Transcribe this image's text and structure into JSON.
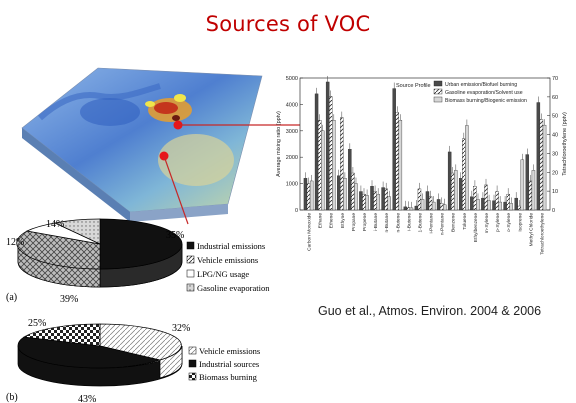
{
  "slide": {
    "title": "Sources of VOC",
    "citation": "Guo et al., Atmos. Environ. 2004 & 2006"
  },
  "colors": {
    "title": "#c00000",
    "marker": "#e8161a",
    "connector": "#c62828"
  },
  "pie_a": {
    "panel_label": "(a)",
    "slices": [
      {
        "label": "Industrial emissions",
        "percent": 35,
        "fill": "black"
      },
      {
        "label": "Vehicle emissions",
        "percent": 39,
        "fill": "cross-hatch"
      },
      {
        "label": "LPG/NG usage",
        "percent": 12,
        "fill": "white"
      },
      {
        "label": "Gasoline evaporation",
        "percent": 14,
        "fill": "dotted-grey"
      }
    ],
    "legend": [
      "Industrial emissions",
      "Vehicle emissions",
      "LPG/NG usage",
      "Gasoline evaporation"
    ]
  },
  "pie_b": {
    "panel_label": "(b)",
    "slices": [
      {
        "label": "Vehicle emissions",
        "percent": 32,
        "fill": "white-hatch"
      },
      {
        "label": "Industrial sources",
        "percent": 43,
        "fill": "black"
      },
      {
        "label": "Biomass burning",
        "percent": 25,
        "fill": "checker"
      }
    ],
    "legend": [
      "Vehicle emissions",
      "Industrial sources",
      "Biomass burning"
    ]
  },
  "chart_data": {
    "type": "bar",
    "ylabel": "Average mixing ratio (pptv)",
    "ylabel_right": "Tetrachloroethylene (pptv)",
    "ylim": [
      0,
      5000
    ],
    "ylim_right": [
      0,
      70
    ],
    "yticks": [
      "0",
      "1000",
      "2000",
      "3000",
      "4000",
      "5000"
    ],
    "yticks_right": [
      "0",
      "10",
      "20",
      "30",
      "40",
      "50",
      "60",
      "70"
    ],
    "legend_title": "Source Profile",
    "legend_position": "top-right",
    "categories": [
      "Carbon Monoxide",
      "Ethane",
      "Ethene",
      "Ethyne",
      "Propane",
      "Propene",
      "i-Butane",
      "n-Butane",
      "n-Butene",
      "i-Butene",
      "1-Butene",
      "i-Pentane",
      "n-Pentane",
      "Benzene",
      "Toluene",
      "Ethylbenzene",
      "m-Xylene",
      "p-Xylene",
      "o-Xylene",
      "Isoprene",
      "Methyl Chloride",
      "Tetrachloroethylene"
    ],
    "series": [
      {
        "name": "Urban emission/Biofuel burning",
        "values": [
          1200,
          4400,
          4850,
          1300,
          2300,
          700,
          900,
          850,
          4600,
          120,
          150,
          700,
          400,
          2200,
          1200,
          500,
          450,
          350,
          300,
          450,
          2100,
          57
        ]
      },
      {
        "name": "Gasoline evaporation/Solvent use",
        "values": [
          1000,
          3400,
          4300,
          3500,
          1400,
          600,
          700,
          800,
          3700,
          100,
          800,
          500,
          250,
          1400,
          2700,
          900,
          950,
          700,
          600,
          150,
          1100,
          48
        ]
      },
      {
        "name": "Biomass burning/Biogenic emission",
        "values": [
          1100,
          3000,
          3400,
          1200,
          1000,
          550,
          600,
          500,
          3400,
          80,
          400,
          300,
          200,
          1500,
          3200,
          400,
          350,
          300,
          250,
          1900,
          1500,
          45
        ]
      }
    ]
  }
}
